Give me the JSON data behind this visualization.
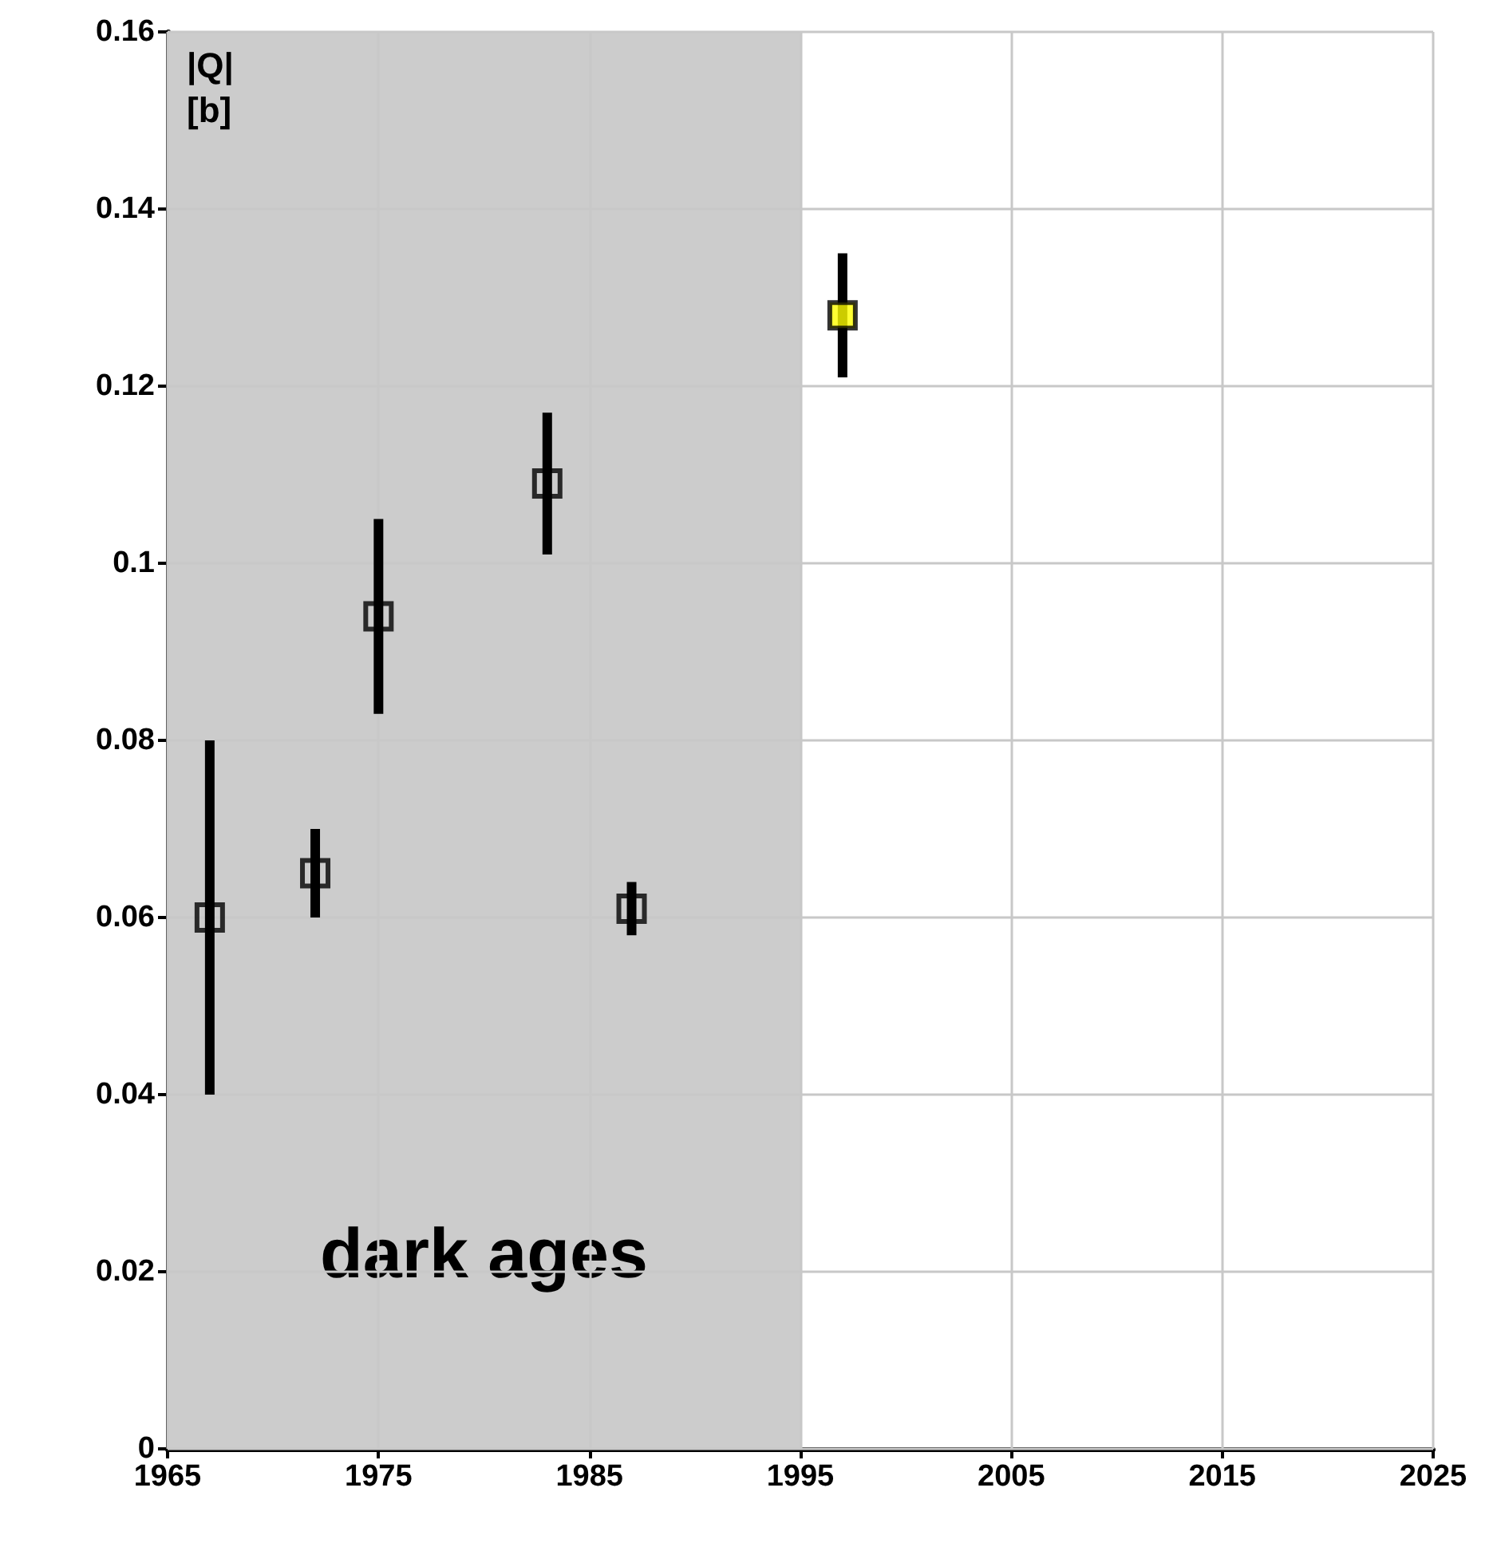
{
  "chart_data": {
    "type": "scatter",
    "ylabel": "|Q| [b]",
    "series": [
      {
        "color": "#000000",
        "x": [
          1967,
          1972,
          1975,
          1983,
          1987
        ],
        "values": [
          0.06,
          0.065,
          0.094,
          0.109,
          0.061
        ],
        "errors": [
          [
            0.04,
            0.08
          ],
          [
            0.06,
            0.07
          ],
          [
            0.083,
            0.105
          ],
          [
            0.101,
            0.117
          ],
          [
            0.058,
            0.064
          ]
        ]
      },
      {
        "color": "#ffff00",
        "x": [
          1997
        ],
        "values": [
          0.128
        ],
        "errors": [
          [
            0.121,
            0.135
          ]
        ]
      }
    ],
    "xlim": [
      1965,
      2025
    ],
    "xticks": [
      1965,
      1975,
      1985,
      1995,
      2005,
      2015,
      2025
    ],
    "ylim": [
      0,
      0.16
    ],
    "yticks": [
      0,
      0.02,
      0.04,
      0.06,
      0.08,
      0.1,
      0.12,
      0.14,
      0.16
    ],
    "bands": [
      {
        "axis": "x",
        "from": 1965,
        "to": 1995,
        "label": "dark ages",
        "color": "#cccccc"
      }
    ],
    "grid": true,
    "marker": "square"
  }
}
